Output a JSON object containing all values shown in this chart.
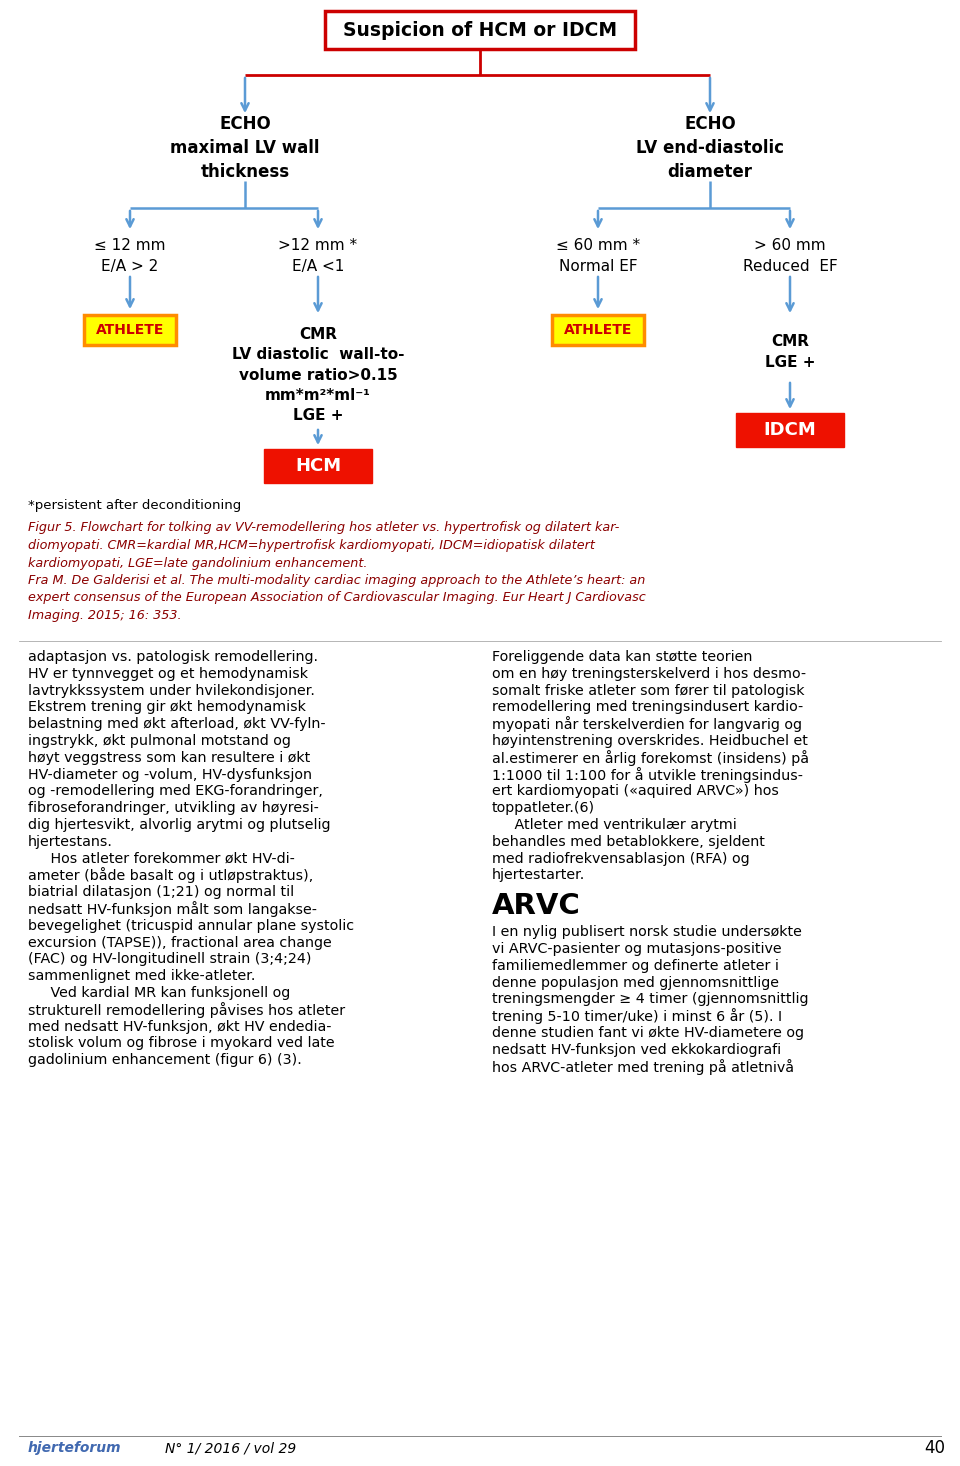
{
  "title_text": "Suspicion of HCM or IDCM",
  "arrow_color": "#5b9bd5",
  "red_line_color": "#cc0000",
  "echo_left_label": "ECHO\nmaximal LV wall\nthickness",
  "echo_right_label": "ECHO\nLV end-diastolic\ndiameter",
  "branch_ll_label": "≤ 12 mm\nE/A > 2",
  "branch_lr_label": ">12 mm *\nE/A <1",
  "branch_rl_label": "≤ 60 mm *\nNormal EF",
  "branch_rr_label": "> 60 mm\nReduced  EF",
  "athlete_color": "#ffff00",
  "athlete_border_color": "#ff8c00",
  "athlete_text_color": "#cc0000",
  "hcm_idcm_color": "#ee1100",
  "cmr_left_label": "CMR\nLV diastolic  wall-to-\nvolume ratio>0.15\nmm*m²*ml⁻¹\nLGE +",
  "cmr_right_label": "CMR\nLGE +",
  "footnote": "*persistent after deconditioning",
  "caption_lines": [
    "Figur 5. Flowchart for tolking av VV-remodellering hos atleter vs. hypertrofisk og dilatert kar-",
    "diomyopati. CMR=kardial MR,HCM=hypertrofisk kardiomyopati, IDCM=idiopatisk dilatert",
    "kardiomyopati, LGE=late gandolinium enhancement.",
    "Fra M. De Galderisi et al. The multi-modality cardiac imaging approach to the Athlete’s heart: an",
    "expert consensus of the European Association of Cardiovascular Imaging. Eur Heart J Cardiovasc",
    "Imaging. 2015; 16: 353."
  ],
  "body_left_lines": [
    "adaptasjon vs. patologisk remodellering.",
    "HV er tynnvegget og et hemodynamisk",
    "lavtrykkssystem under hvilekondisjoner.",
    "Ekstrem trening gir økt hemodynamisk",
    "belastning med økt afterload, økt VV-fyln-",
    "ingstrykk, økt pulmonal motstand og",
    "høyt veggstress som kan resultere i økt",
    "HV-diameter og -volum, HV-dysfunksjon",
    "og -remodellering med EKG-forandringer,",
    "fibroseforandringer, utvikling av høyresi-",
    "dig hjertesvikt, alvorlig arytmi og plutselig",
    "hjertestans.",
    "     Hos atleter forekommer økt HV-di-",
    "ameter (både basalt og i utløpstraktus),",
    "biatrial dilatasjon (1;21) og normal til",
    "nedsatt HV-funksjon målt som langakse-",
    "bevegelighet (tricuspid annular plane systolic",
    "excursion (TAPSE)), fractional area change",
    "(FAC) og HV-longitudinell strain (3;4;24)",
    "sammenlignet med ikke-atleter.",
    "     Ved kardial MR kan funksjonell og",
    "strukturell remodellering påvises hos atleter",
    "med nedsatt HV-funksjon, økt HV endedia-",
    "stolisk volum og fibrose i myokard ved late",
    "gadolinium enhancement (figur 6) (3)."
  ],
  "body_right_lines": [
    "Foreliggende data kan støtte teorien",
    "om en høy treningsterskelverd i hos desmo-",
    "somalt friske atleter som fører til patologisk",
    "remodellering med treningsindusert kardio-",
    "myopati når terskelverdien for langvarig og",
    "høyintenstrening overskrides. Heidbuchel et",
    "al.estimerer en årlig forekomst (insidens) på",
    "1:1000 til 1:100 for å utvikle treningsindus-",
    "ert kardiomyopati («aquired ARVC») hos",
    "toppatleter.(6)",
    "     Atleter med ventrikulær arytmi",
    "behandles med betablokkere, sjeldent",
    "med radiofrekvensablasjon (RFA) og",
    "hjertestarter."
  ],
  "arvc_title": "ARVC",
  "arvc_body_lines": [
    "I en nylig publisert norsk studie undersøkte",
    "vi ARVC-pasienter og mutasjons-positive",
    "familiemedlemmer og definerte atleter i",
    "denne populasjon med gjennomsnittlige",
    "treningsmengder ≥ 4 timer (gjennomsnittlig",
    "trening 5-10 timer/uke) i minst 6 år (5). I",
    "denne studien fant vi økte HV-diametere og",
    "nedsatt HV-funksjon ved ekkokardiografi",
    "hos ARVC-atleter med trening på atletnivå"
  ],
  "footer_left": "hjerteforum",
  "footer_journal": "N° 1/ 2016 / vol 29",
  "footer_page": "40",
  "background_color": "#ffffff"
}
